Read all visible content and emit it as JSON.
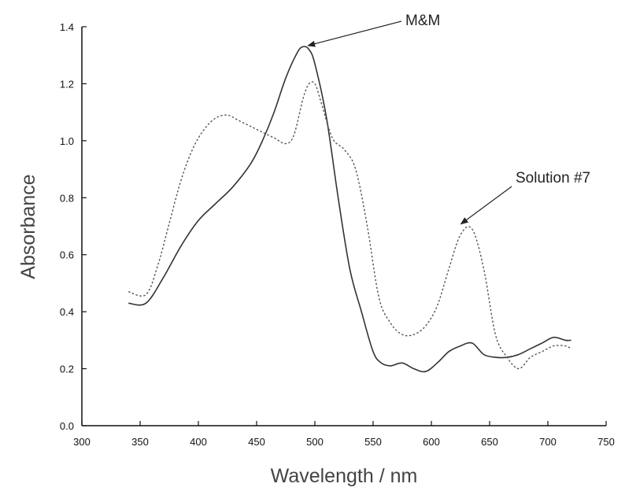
{
  "chart_data": {
    "type": "line",
    "title": "",
    "xlabel": "Wavelength / nm",
    "ylabel": "Absorbance",
    "xlim": [
      300,
      750
    ],
    "ylim": [
      0.0,
      1.4
    ],
    "xticks": [
      "300",
      "350",
      "400",
      "450",
      "500",
      "550",
      "600",
      "650",
      "700",
      "750"
    ],
    "yticks": [
      "0.0",
      "0.2",
      "0.4",
      "0.6",
      "0.8",
      "1.0",
      "1.2",
      "1.4"
    ],
    "grid": false,
    "legend": "none",
    "series": [
      {
        "name": "M&M",
        "style": "solid",
        "color": "#333333",
        "x": [
          340,
          355,
          370,
          385,
          400,
          415,
          430,
          445,
          455,
          465,
          475,
          485,
          490,
          495,
          500,
          510,
          520,
          530,
          540,
          550,
          557,
          565,
          575,
          585,
          595,
          605,
          615,
          625,
          635,
          645,
          655,
          665,
          675,
          685,
          695,
          705,
          715,
          720
        ],
        "y": [
          0.43,
          0.43,
          0.52,
          0.63,
          0.72,
          0.78,
          0.84,
          0.92,
          1.0,
          1.1,
          1.22,
          1.31,
          1.33,
          1.32,
          1.27,
          1.08,
          0.8,
          0.55,
          0.4,
          0.26,
          0.22,
          0.21,
          0.22,
          0.2,
          0.19,
          0.22,
          0.26,
          0.28,
          0.29,
          0.25,
          0.24,
          0.24,
          0.25,
          0.27,
          0.29,
          0.31,
          0.3,
          0.3
        ]
      },
      {
        "name": "Solution #7",
        "style": "dashed",
        "color": "#555555",
        "x": [
          340,
          355,
          365,
          375,
          385,
          395,
          405,
          415,
          425,
          435,
          445,
          455,
          465,
          475,
          482,
          490,
          495,
          500,
          505,
          515,
          525,
          535,
          545,
          555,
          565,
          575,
          585,
          595,
          605,
          615,
          625,
          635,
          645,
          655,
          665,
          675,
          685,
          695,
          705,
          715,
          720
        ],
        "y": [
          0.47,
          0.46,
          0.56,
          0.71,
          0.86,
          0.97,
          1.04,
          1.08,
          1.09,
          1.07,
          1.05,
          1.03,
          1.01,
          0.99,
          1.02,
          1.15,
          1.2,
          1.2,
          1.14,
          1.01,
          0.97,
          0.9,
          0.7,
          0.45,
          0.36,
          0.32,
          0.32,
          0.35,
          0.42,
          0.55,
          0.67,
          0.69,
          0.55,
          0.32,
          0.24,
          0.2,
          0.24,
          0.26,
          0.28,
          0.28,
          0.27
        ]
      }
    ],
    "annotations": [
      {
        "text": "M&M",
        "target_x": 490,
        "target_y": 1.32
      },
      {
        "text": "Solution #7",
        "target_x": 628,
        "target_y": 0.68
      }
    ]
  }
}
